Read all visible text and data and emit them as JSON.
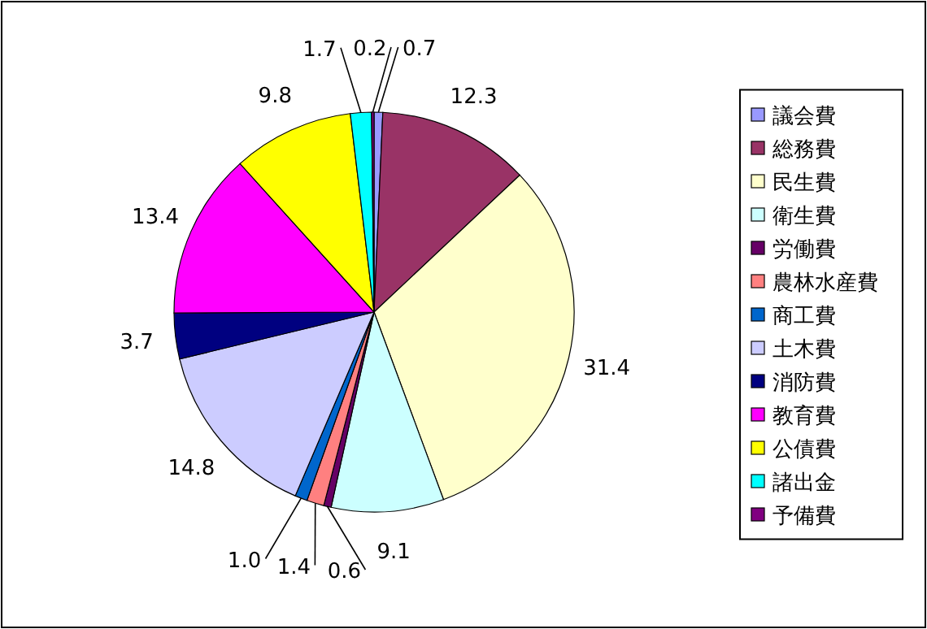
{
  "chart_data": {
    "type": "pie",
    "categories": [
      "議会費",
      "総務費",
      "民生費",
      "衛生費",
      "労働費",
      "農林水産費",
      "商工費",
      "土木費",
      "消防費",
      "教育費",
      "公債費",
      "諸出金",
      "予備費"
    ],
    "values": [
      0.7,
      12.3,
      31.4,
      9.1,
      0.6,
      1.4,
      1.0,
      14.8,
      3.7,
      13.4,
      9.8,
      1.7,
      0.2
    ],
    "colors": [
      "#9999ff",
      "#993366",
      "#ffffcc",
      "#ccffff",
      "#660066",
      "#ff8080",
      "#0066cc",
      "#ccccff",
      "#000080",
      "#ff00ff",
      "#ffff00",
      "#00ffff",
      "#800080"
    ],
    "value_labels": [
      "0.7",
      "12.3",
      "31.4",
      "9.1",
      "0.6",
      "1.4",
      "1.0",
      "14.8",
      "3.7",
      "13.4",
      "9.8",
      "1.7",
      "0.2"
    ],
    "legend": "right"
  }
}
